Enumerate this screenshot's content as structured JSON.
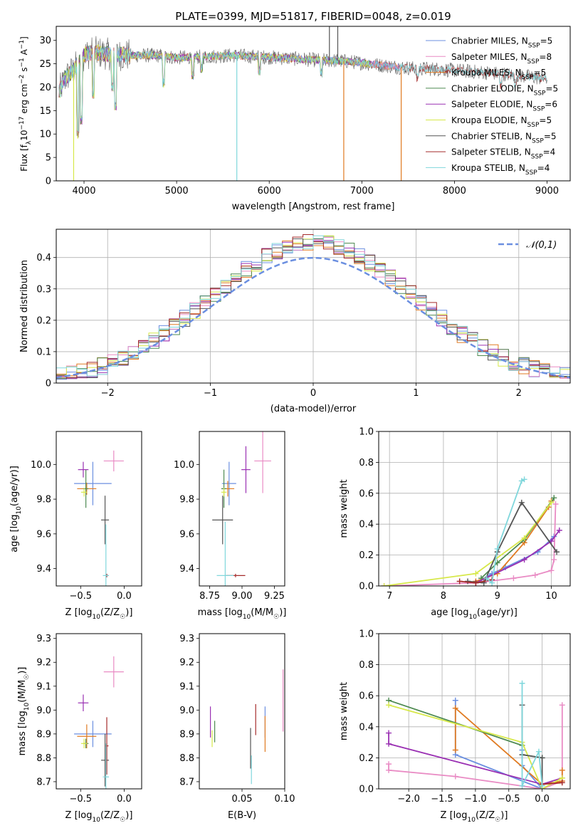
{
  "figure_title": "PLATE=0399, MJD=51817, FIBERID=0048, z=0.019",
  "colors": {
    "Chabrier MILES": "#6b8fe0",
    "Salpeter MILES": "#e98bc4",
    "Kroupa MILES": "#e07b22",
    "Chabrier ELODIE": "#4e8a52",
    "Salpeter ELODIE": "#9a30b3",
    "Kroupa ELODIE": "#d7e84a",
    "Chabrier STELIB": "#555555",
    "Salpeter STELIB": "#a52a2a",
    "Kroupa STELIB": "#80d7dc"
  },
  "chart_data": [
    {
      "id": "spectrum",
      "type": "line",
      "xlabel": "wavelength [Angstrom, rest frame]",
      "ylabel": "Flux [f_λ10^-17 erg cm^-2 s^-1 A^-1]",
      "xlim": [
        3700,
        9250
      ],
      "ylim": [
        0,
        33
      ],
      "xticks": [
        4000,
        5000,
        6000,
        7000,
        8000,
        9000
      ],
      "yticks": [
        0,
        5,
        10,
        15,
        20,
        25,
        30
      ],
      "grid": false,
      "legend_position": "top-right",
      "legend": [
        {
          "model": "Chabrier MILES",
          "label": "Chabrier MILES, N",
          "sub": "SSP",
          "n": "=5"
        },
        {
          "model": "Salpeter MILES",
          "label": "Salpeter MILES, N",
          "sub": "SSP",
          "n": "=8"
        },
        {
          "model": "Kroupa MILES",
          "label": "Kroupa MILES, N",
          "sub": "SSP",
          "n": "=5"
        },
        {
          "model": "Chabrier ELODIE",
          "label": "Chabrier ELODIE, N",
          "sub": "SSP",
          "n": "=5"
        },
        {
          "model": "Salpeter ELODIE",
          "label": "Salpeter ELODIE, N",
          "sub": "SSP",
          "n": "=6"
        },
        {
          "model": "Kroupa ELODIE",
          "label": "Kroupa ELODIE, N",
          "sub": "SSP",
          "n": "=5"
        },
        {
          "model": "Chabrier STELIB",
          "label": "Chabrier STELIB, N",
          "sub": "SSP",
          "n": "=5"
        },
        {
          "model": "Salpeter STELIB",
          "label": "Salpeter STELIB, N",
          "sub": "SSP",
          "n": "=4"
        },
        {
          "model": "Kroupa STELIB",
          "label": "Kroupa STELIB, N",
          "sub": "SSP",
          "n": "=4"
        }
      ],
      "continuum": {
        "x": [
          3730,
          3800,
          3900,
          4000,
          4100,
          4300,
          4500,
          4800,
          5000,
          5300,
          5600,
          5900,
          6200,
          6500,
          6800,
          7000,
          7200,
          7400,
          7600,
          7800,
          8000,
          8300,
          8600,
          9000
        ],
        "y": [
          19,
          22,
          24,
          27,
          27.5,
          27,
          26.8,
          26.8,
          26.3,
          26.5,
          26.8,
          26.5,
          26.2,
          25.8,
          25.6,
          25.2,
          24.7,
          24.3,
          24.0,
          23.9,
          23.6,
          23.2,
          22.7,
          21.8
        ]
      },
      "spikes": [
        {
          "x": 3888,
          "y": 0,
          "model": "Kroupa ELODIE"
        },
        {
          "x": 5650,
          "y": 0,
          "model": "Kroupa STELIB"
        },
        {
          "x": 6805,
          "y": 0,
          "model": "Kroupa MILES"
        },
        {
          "x": 7425,
          "y": 0,
          "model": "Kroupa MILES"
        },
        {
          "x": 6650,
          "y": 33,
          "model": "Chabrier STELIB"
        },
        {
          "x": 6740,
          "y": 33,
          "model": "Chabrier STELIB"
        }
      ],
      "absorption_lines": [
        {
          "x": 3934,
          "y": 9
        },
        {
          "x": 3969,
          "y": 12
        },
        {
          "x": 4102,
          "y": 17.5
        },
        {
          "x": 4305,
          "y": 19
        },
        {
          "x": 4341,
          "y": 15
        },
        {
          "x": 4861,
          "y": 20
        },
        {
          "x": 5175,
          "y": 21.5
        },
        {
          "x": 5270,
          "y": 23
        },
        {
          "x": 5895,
          "y": 22.5
        },
        {
          "x": 6563,
          "y": 22
        },
        {
          "x": 7600,
          "y": 21
        },
        {
          "x": 8500,
          "y": 19.5
        },
        {
          "x": 8660,
          "y": 20
        }
      ]
    },
    {
      "id": "residuals",
      "type": "bar",
      "xlabel": "(data-model)/error",
      "ylabel": "Normed distribution",
      "xlim": [
        -2.5,
        2.5
      ],
      "ylim": [
        0,
        0.49
      ],
      "xticks": [
        -2,
        -1,
        0,
        1,
        2
      ],
      "yticks": [
        0.0,
        0.1,
        0.2,
        0.3,
        0.4
      ],
      "grid": true,
      "legend_position": "top-right",
      "legend": [
        {
          "label": "𝒩(0,1)",
          "style": "dashed",
          "color": "#6b8fe0"
        }
      ],
      "bin_width": 0.1
    },
    {
      "id": "age-vs-Z",
      "type": "scatter",
      "xlabel": "Z [log₁₀(Z/Z☉)]",
      "ylabel": "age  [log₁₀(age/yr)]",
      "xlim": [
        -0.78,
        0.2
      ],
      "ylim": [
        9.3,
        10.19
      ],
      "xticks": [
        -0.5,
        0.0
      ],
      "yticks": [
        9.4,
        9.6,
        9.8,
        10.0
      ],
      "grid": false,
      "points": [
        {
          "model": "Chabrier MILES",
          "x": -0.36,
          "xerr": 0.43,
          "y": 9.89,
          "yerr": 0.25
        },
        {
          "model": "Salpeter MILES",
          "x": -0.12,
          "xerr": 0.23,
          "y": 10.02,
          "yerr": 0.12
        },
        {
          "model": "Kroupa MILES",
          "x": -0.43,
          "xerr": 0.22,
          "y": 9.86,
          "yerr": 0.07
        },
        {
          "model": "Chabrier ELODIE",
          "x": -0.44,
          "xerr": 0.06,
          "y": 9.86,
          "yerr": 0.22
        },
        {
          "model": "Salpeter ELODIE",
          "x": -0.47,
          "xerr": 0.12,
          "y": 9.97,
          "yerr": 0.09
        },
        {
          "model": "Kroupa ELODIE",
          "x": -0.46,
          "xerr": 0.07,
          "y": 9.84,
          "yerr": 0.05
        },
        {
          "model": "Chabrier STELIB",
          "x": -0.22,
          "xerr": 0.09,
          "y": 9.68,
          "yerr": 0.28
        },
        {
          "model": "Salpeter STELIB",
          "x": -0.2,
          "xerr": 0.04,
          "y": 9.36,
          "yerr": 0.02
        },
        {
          "model": "Kroupa STELIB",
          "x": -0.21,
          "xerr": 0.07,
          "y": 9.36,
          "yerr": 0.59
        }
      ]
    },
    {
      "id": "age-vs-mass",
      "type": "scatter",
      "xlabel": "mass [log₁₀(M/M☉)]",
      "ylabel": "",
      "xlim": [
        8.67,
        9.33
      ],
      "ylim": [
        9.3,
        10.19
      ],
      "xticks": [
        8.75,
        9.0,
        9.25
      ],
      "yticks": [
        9.4,
        9.6,
        9.8,
        10.0
      ],
      "grid": false,
      "points": [
        {
          "model": "Chabrier MILES",
          "x": 8.9,
          "xerr": 0.11,
          "y": 9.89,
          "yerr": 0.25
        },
        {
          "model": "Salpeter MILES",
          "x": 9.16,
          "xerr": 0.13,
          "y": 10.02,
          "yerr": 0.37
        },
        {
          "model": "Kroupa MILES",
          "x": 8.89,
          "xerr": 0.1,
          "y": 9.86,
          "yerr": 0.09
        },
        {
          "model": "Chabrier ELODIE",
          "x": 8.86,
          "xerr": 0.04,
          "y": 9.86,
          "yerr": 0.22
        },
        {
          "model": "Salpeter ELODIE",
          "x": 9.03,
          "xerr": 0.07,
          "y": 9.97,
          "yerr": 0.27
        },
        {
          "model": "Kroupa ELODIE",
          "x": 8.86,
          "xerr": 0.04,
          "y": 9.84,
          "yerr": 0.05
        },
        {
          "model": "Chabrier STELIB",
          "x": 8.85,
          "xerr": 0.16,
          "y": 9.68,
          "yerr": 0.28
        },
        {
          "model": "Salpeter STELIB",
          "x": 8.95,
          "xerr": 0.15,
          "y": 9.36,
          "yerr": 0.02
        },
        {
          "model": "Kroupa STELIB",
          "x": 8.87,
          "xerr": 0.13,
          "y": 9.36,
          "yerr": 0.62
        }
      ]
    },
    {
      "id": "weight-vs-age",
      "type": "line",
      "xlabel": "age  [log₁₀(age/yr)]",
      "ylabel": "mass weight",
      "xlim": [
        6.8,
        10.35
      ],
      "ylim": [
        0,
        1
      ],
      "xticks": [
        7,
        8,
        9,
        10
      ],
      "yticks": [
        0.0,
        0.2,
        0.4,
        0.6,
        0.8,
        1.0
      ],
      "grid": true,
      "series": [
        {
          "model": "Chabrier MILES",
          "x": [
            8.6,
            8.9,
            9.15,
            9.75,
            10.05
          ],
          "y": [
            0.02,
            0.08,
            0.12,
            0.22,
            0.32
          ]
        },
        {
          "model": "Salpeter MILES",
          "x": [
            6.9,
            8.6,
            9.3,
            9.7,
            10.0,
            10.05,
            10.08
          ],
          "y": [
            0.0,
            0.02,
            0.05,
            0.07,
            0.1,
            0.17,
            0.53
          ]
        },
        {
          "model": "Kroupa MILES",
          "x": [
            8.6,
            9.0,
            9.5,
            9.95,
            10.0
          ],
          "y": [
            0.03,
            0.08,
            0.28,
            0.51,
            0.55
          ]
        },
        {
          "model": "Chabrier ELODIE",
          "x": [
            8.7,
            9.0,
            9.5,
            10.05
          ],
          "y": [
            0.05,
            0.15,
            0.3,
            0.57
          ]
        },
        {
          "model": "Salpeter ELODIE",
          "x": [
            8.6,
            9.5,
            10.0,
            10.15
          ],
          "y": [
            0.02,
            0.17,
            0.29,
            0.36
          ]
        },
        {
          "model": "Kroupa ELODIE",
          "x": [
            6.9,
            8.6,
            9.5,
            10.0
          ],
          "y": [
            0.0,
            0.08,
            0.31,
            0.54
          ]
        },
        {
          "model": "Chabrier STELIB",
          "x": [
            8.45,
            8.75,
            9.0,
            9.45,
            10.1
          ],
          "y": [
            0.03,
            0.02,
            0.22,
            0.54,
            0.22
          ]
        },
        {
          "model": "Salpeter STELIB",
          "x": [
            8.3,
            8.6,
            8.9
          ],
          "y": [
            0.03,
            0.02,
            0.04
          ]
        },
        {
          "model": "Kroupa STELIB",
          "x": [
            8.8,
            8.9,
            9.0,
            9.45,
            9.5
          ],
          "y": [
            0.05,
            0.02,
            0.24,
            0.68,
            0.69
          ]
        }
      ]
    },
    {
      "id": "mass-vs-Z",
      "type": "scatter",
      "xlabel": "Z [log₁₀(Z/Z☉)]",
      "ylabel": "mass [log₁₀(M/M☉)]",
      "xlim": [
        -0.78,
        0.2
      ],
      "ylim": [
        8.67,
        9.32
      ],
      "xticks": [
        -0.5,
        0.0
      ],
      "yticks": [
        8.7,
        8.8,
        8.9,
        9.0,
        9.1,
        9.2,
        9.3
      ],
      "grid": false,
      "points": [
        {
          "model": "Chabrier MILES",
          "x": -0.36,
          "xerr": 0.43,
          "y": 8.9,
          "yerr": 0.11
        },
        {
          "model": "Salpeter MILES",
          "x": -0.12,
          "xerr": 0.23,
          "y": 9.16,
          "yerr": 0.13
        },
        {
          "model": "Kroupa MILES",
          "x": -0.43,
          "xerr": 0.22,
          "y": 8.89,
          "yerr": 0.1
        },
        {
          "model": "Chabrier ELODIE",
          "x": -0.44,
          "xerr": 0.06,
          "y": 8.86,
          "yerr": 0.04
        },
        {
          "model": "Salpeter ELODIE",
          "x": -0.47,
          "xerr": 0.12,
          "y": 9.03,
          "yerr": 0.07
        },
        {
          "model": "Kroupa ELODIE",
          "x": -0.46,
          "xerr": 0.07,
          "y": 8.86,
          "yerr": 0.04
        },
        {
          "model": "Chabrier STELIB",
          "x": -0.22,
          "xerr": 0.09,
          "y": 8.79,
          "yerr": 0.22
        },
        {
          "model": "Salpeter STELIB",
          "x": -0.2,
          "xerr": 0.04,
          "y": 8.85,
          "yerr": 0.24
        },
        {
          "model": "Kroupa STELIB",
          "x": -0.21,
          "xerr": 0.07,
          "y": 8.72,
          "yerr": 0.28
        }
      ]
    },
    {
      "id": "mass-vs-ebv",
      "type": "scatter",
      "xlabel": "E(B-V)",
      "ylabel": "",
      "xlim": [
        0.0,
        0.1
      ],
      "ylim": [
        8.67,
        9.32
      ],
      "xticks": [
        0.05,
        0.1
      ],
      "yticks": [
        8.7,
        8.8,
        8.9,
        9.0,
        9.1,
        9.2,
        9.3
      ],
      "grid": false,
      "points": [
        {
          "model": "Chabrier MILES",
          "x": 0.077,
          "y": 8.95,
          "yerr": 0.13
        },
        {
          "model": "Salpeter MILES",
          "x": 0.098,
          "y": 9.04,
          "yerr": 0.26
        },
        {
          "model": "Kroupa MILES",
          "x": 0.077,
          "y": 8.9,
          "yerr": 0.15
        },
        {
          "model": "Chabrier ELODIE",
          "x": 0.018,
          "y": 8.91,
          "yerr": 0.09
        },
        {
          "model": "Salpeter ELODIE",
          "x": 0.013,
          "y": 8.95,
          "yerr": 0.13
        },
        {
          "model": "Kroupa ELODIE",
          "x": 0.015,
          "y": 8.88,
          "yerr": 0.07
        },
        {
          "model": "Chabrier STELIB",
          "x": 0.06,
          "y": 8.84,
          "yerr": 0.17
        },
        {
          "model": "Salpeter STELIB",
          "x": 0.066,
          "y": 8.96,
          "yerr": 0.13
        },
        {
          "model": "Kroupa STELIB",
          "x": 0.061,
          "y": 8.75,
          "yerr": 0.12
        }
      ]
    },
    {
      "id": "weight-vs-Z",
      "type": "line",
      "xlabel": "Z [log₁₀(Z/Z☉)]",
      "ylabel": "mass weight",
      "xlim": [
        -2.45,
        0.42
      ],
      "ylim": [
        0,
        1
      ],
      "xticks": [
        -2.0,
        -1.5,
        -1.0,
        -0.5,
        0.0
      ],
      "yticks": [
        0.0,
        0.2,
        0.4,
        0.6,
        0.8,
        1.0
      ],
      "grid": true,
      "series": [
        {
          "model": "Chabrier MILES",
          "x": [
            -1.3,
            -1.3,
            0.0,
            -0.3,
            -0.3
          ],
          "y": [
            0.57,
            0.22,
            0.0,
            0.15,
            0.25
          ]
        },
        {
          "model": "Salpeter MILES",
          "x": [
            -2.3,
            -2.3,
            -1.3,
            0.0,
            0.3,
            0.3
          ],
          "y": [
            0.16,
            0.12,
            0.08,
            0.0,
            0.05,
            0.54
          ]
        },
        {
          "model": "Kroupa MILES",
          "x": [
            -1.3,
            -1.3,
            0.0,
            0.3,
            0.3
          ],
          "y": [
            0.25,
            0.52,
            0.03,
            0.05,
            0.12
          ]
        },
        {
          "model": "Chabrier ELODIE",
          "x": [
            -2.3,
            -0.3,
            -0.3,
            0.0
          ],
          "y": [
            0.57,
            0.28,
            0.22,
            0.2
          ]
        },
        {
          "model": "Salpeter ELODIE",
          "x": [
            -2.3,
            -2.3,
            0.0,
            0.3
          ],
          "y": [
            0.36,
            0.29,
            0.03,
            0.07
          ]
        },
        {
          "model": "Kroupa ELODIE",
          "x": [
            -2.3,
            -0.3,
            0.0,
            0.3
          ],
          "y": [
            0.54,
            0.3,
            0.0,
            0.07
          ]
        },
        {
          "model": "Chabrier STELIB",
          "x": [
            -0.3,
            -0.3,
            0.0,
            0.0
          ],
          "y": [
            0.54,
            0.22,
            0.2,
            0.03
          ]
        },
        {
          "model": "Salpeter STELIB",
          "x": [
            0.0,
            0.3
          ],
          "y": [
            0.03,
            0.04
          ]
        },
        {
          "model": "Kroupa STELIB",
          "x": [
            -0.3,
            -0.3,
            -0.05,
            0.0
          ],
          "y": [
            0.68,
            0.02,
            0.24,
            0.02
          ]
        }
      ]
    }
  ]
}
